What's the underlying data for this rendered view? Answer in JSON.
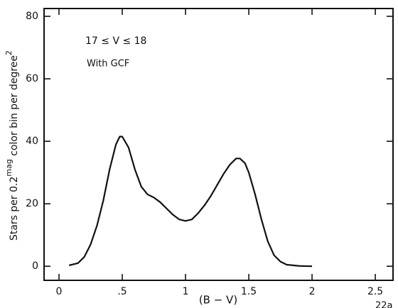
{
  "chart_data": {
    "type": "line",
    "annotations": [
      "17 ≤ V ≤ 18",
      "With GCF"
    ],
    "xlabel": "(B − V)",
    "ylabel": [
      "Stars per 0.2",
      "mag",
      " color bin per degree",
      "2"
    ],
    "corner_text": "22a",
    "x": [
      0.08,
      0.15,
      0.2,
      0.25,
      0.3,
      0.35,
      0.4,
      0.45,
      0.48,
      0.5,
      0.55,
      0.6,
      0.65,
      0.7,
      0.75,
      0.8,
      0.85,
      0.9,
      0.95,
      1.0,
      1.05,
      1.1,
      1.15,
      1.2,
      1.25,
      1.3,
      1.35,
      1.4,
      1.43,
      1.47,
      1.5,
      1.55,
      1.6,
      1.65,
      1.7,
      1.75,
      1.8,
      1.9,
      2.0
    ],
    "series": [
      {
        "color": "#111111",
        "values": [
          0.3,
          1,
          3,
          7,
          13,
          21,
          31,
          39,
          41.5,
          41.5,
          38,
          31,
          25.5,
          23,
          22,
          20.5,
          18.5,
          16.5,
          15,
          14.5,
          15,
          17,
          19.5,
          22.5,
          26,
          29.5,
          32.5,
          34.5,
          34.5,
          33,
          30,
          23,
          15,
          8,
          3.5,
          1.5,
          0.5,
          0.1,
          0
        ]
      }
    ],
    "xlim": [
      -0.118,
      2.64
    ],
    "ylim": [
      -4.5,
      82.5
    ],
    "xticks": [
      0,
      {
        "value": 0.5,
        "label": ".5"
      },
      1,
      1.5,
      2,
      2.5
    ],
    "yticks": [
      0,
      20,
      40,
      60,
      80
    ]
  }
}
